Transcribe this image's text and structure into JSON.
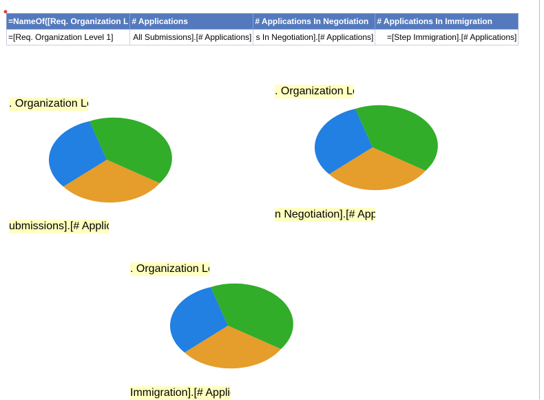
{
  "table": {
    "header": [
      "=NameOf([Req. Organization L",
      "# Applications",
      "# Applications In Negotiation",
      "# Applications In Immigration"
    ],
    "row": [
      "=[Req. Organization Level 1]",
      "All Submissions].[# Applications]",
      "s In Negotiation].[# Applications]",
      "=[Step Immigration].[# Applications]"
    ]
  },
  "charts": [
    {
      "top_label": ". Organization Le",
      "bottom_label": "ubmissions].[# Applic"
    },
    {
      "top_label": ". Organization Le",
      "bottom_label": "n Negotiation].[# App"
    },
    {
      "top_label": ". Organization Le",
      "bottom_label": "Immigration].[# Applic"
    }
  ]
}
